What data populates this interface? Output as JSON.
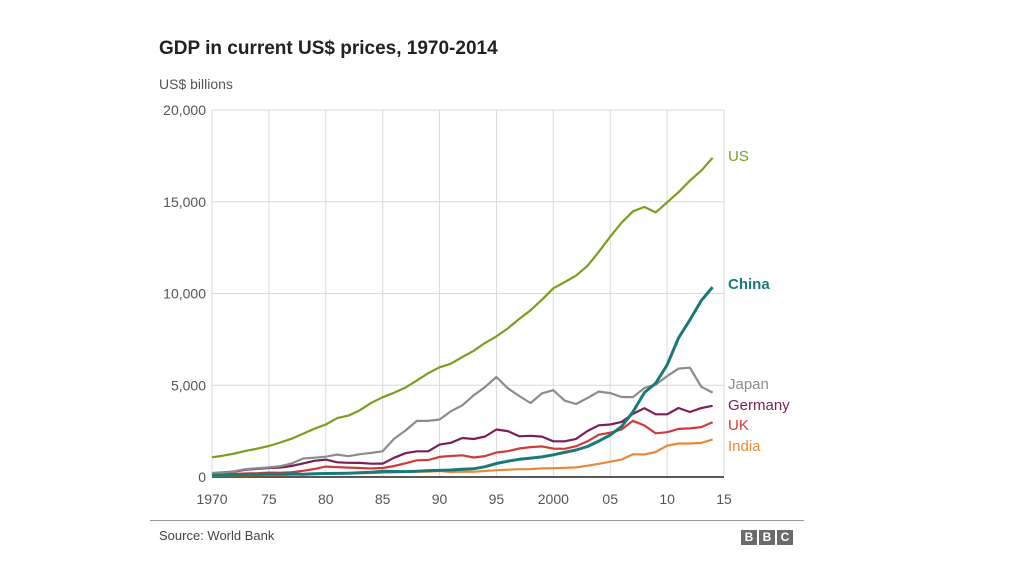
{
  "header": {
    "title": "GDP in current US$ prices, 1970-2014",
    "subtitle": "US$ billions"
  },
  "footer": {
    "source": "Source: World Bank",
    "logo_letters": [
      "B",
      "B",
      "C"
    ]
  },
  "chart_data": {
    "type": "line",
    "title": "GDP in current US$ prices, 1970-2014",
    "ylabel": "US$ billions",
    "xlabel": "",
    "xlim": [
      1970,
      2015
    ],
    "ylim": [
      0,
      20000
    ],
    "grid": true,
    "legend": "right (end-of-line labels)",
    "x_ticks": [
      1970,
      1975,
      1980,
      1985,
      1990,
      1995,
      2000,
      2005,
      2010,
      2015
    ],
    "x_tick_labels": [
      "1970",
      "75",
      "80",
      "85",
      "90",
      "95",
      "2000",
      "05",
      "10",
      "15"
    ],
    "y_ticks": [
      0,
      5000,
      10000,
      15000,
      20000
    ],
    "y_tick_labels": [
      "0",
      "5,000",
      "10,000",
      "15,000",
      "20,000"
    ],
    "x": [
      1970,
      1971,
      1972,
      1973,
      1974,
      1975,
      1976,
      1977,
      1978,
      1979,
      1980,
      1981,
      1982,
      1983,
      1984,
      1985,
      1986,
      1987,
      1988,
      1989,
      1990,
      1991,
      1992,
      1993,
      1994,
      1995,
      1996,
      1997,
      1998,
      1999,
      2000,
      2001,
      2002,
      2003,
      2004,
      2005,
      2006,
      2007,
      2008,
      2009,
      2010,
      2011,
      2012,
      2013,
      2014
    ],
    "series": [
      {
        "name": "US",
        "color": "#7a9e1f",
        "label_bold": false,
        "values": [
          1075,
          1168,
          1282,
          1429,
          1549,
          1689,
          1878,
          2086,
          2357,
          2632,
          2862,
          3211,
          3345,
          3638,
          4041,
          4347,
          4590,
          4870,
          5253,
          5658,
          5980,
          6174,
          6539,
          6879,
          7309,
          7664,
          8100,
          8609,
          9089,
          9661,
          10285,
          10622,
          10978,
          11511,
          12275,
          13094,
          13856,
          14478,
          14719,
          14419,
          14964,
          15518,
          16155,
          16692,
          17393
        ]
      },
      {
        "name": "China",
        "color": "#1a7a7a",
        "label_bold": true,
        "values": [
          92,
          100,
          114,
          139,
          144,
          163,
          154,
          175,
          150,
          178,
          191,
          196,
          205,
          231,
          260,
          309,
          301,
          297,
          312,
          348,
          361,
          383,
          427,
          445,
          564,
          735,
          863,
          962,
          1029,
          1094,
          1211,
          1339,
          1471,
          1660,
          1955,
          2286,
          2752,
          3552,
          4598,
          5110,
          6101,
          7573,
          8561,
          9607,
          10351
        ]
      },
      {
        "name": "Japan",
        "color": "#8c8c8c",
        "label_bold": false,
        "values": [
          213,
          241,
          318,
          433,
          478,
          522,
          586,
          736,
          1010,
          1053,
          1105,
          1218,
          1134,
          1244,
          1313,
          1398,
          2078,
          2530,
          3056,
          3058,
          3133,
          3585,
          3909,
          4454,
          4907,
          5449,
          4833,
          4414,
          4033,
          4562,
          4731,
          4160,
          3980,
          4303,
          4656,
          4572,
          4357,
          4356,
          4849,
          5035,
          5495,
          5905,
          5954,
          4920,
          4602
        ]
      },
      {
        "name": "Germany",
        "color": "#7b1e5a",
        "label_bold": false,
        "values": [
          215,
          249,
          299,
          398,
          445,
          489,
          520,
          600,
          740,
          882,
          950,
          800,
          776,
          770,
          725,
          732,
          1046,
          1297,
          1401,
          1398,
          1765,
          1862,
          2123,
          2069,
          2206,
          2591,
          2504,
          2218,
          2243,
          2200,
          1947,
          1945,
          2079,
          2505,
          2815,
          2861,
          3002,
          3440,
          3752,
          3418,
          3417,
          3758,
          3544,
          3753,
          3879
        ]
      },
      {
        "name": "UK",
        "color": "#d13a3a",
        "label_bold": false,
        "values": [
          130,
          148,
          169,
          192,
          206,
          241,
          232,
          263,
          336,
          438,
          565,
          541,
          514,
          490,
          461,
          489,
          601,
          745,
          910,
          926,
          1093,
          1142,
          1180,
          1061,
          1140,
          1335,
          1405,
          1552,
          1631,
          1665,
          1549,
          1535,
          1676,
          1944,
          2304,
          2412,
          2593,
          3062,
          2808,
          2383,
          2442,
          2619,
          2646,
          2721,
          2989
        ]
      },
      {
        "name": "India",
        "color": "#e8893a",
        "label_bold": false,
        "values": [
          62,
          67,
          71,
          85,
          99,
          98,
          102,
          121,
          137,
          152,
          186,
          196,
          204,
          222,
          216,
          233,
          249,
          277,
          297,
          296,
          327,
          274,
          293,
          284,
          333,
          367,
          400,
          423,
          428,
          467,
          477,
          494,
          524,
          618,
          722,
          834,
          949,
          1239,
          1224,
          1365,
          1708,
          1823,
          1828,
          1857,
          2042
        ]
      }
    ]
  }
}
